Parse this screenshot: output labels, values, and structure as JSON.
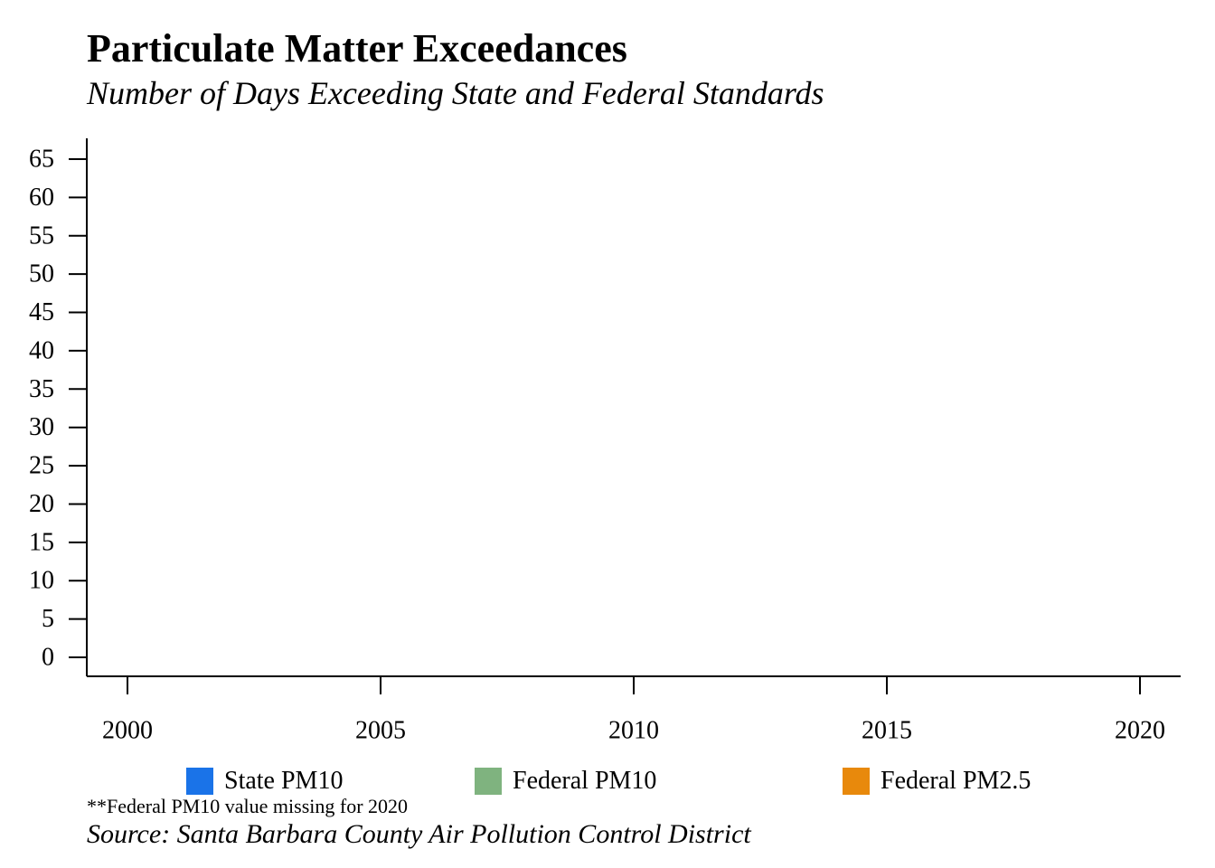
{
  "chart_data": {
    "type": "bar",
    "title": "Particulate Matter Exceedances",
    "subtitle": "Number of Days Exceeding State and Federal Standards",
    "x_ticks": [
      "2000",
      "2005",
      "2010",
      "2015",
      "2020"
    ],
    "y_ticks": [
      "0",
      "5",
      "10",
      "15",
      "20",
      "25",
      "30",
      "35",
      "40",
      "45",
      "50",
      "55",
      "60",
      "65"
    ],
    "xlim": [
      2000,
      2020
    ],
    "ylim": [
      0,
      65
    ],
    "grid": false,
    "legend_position": "bottom",
    "series": [
      {
        "name": "State PM10",
        "color": "#1a73e8",
        "values": []
      },
      {
        "name": "Federal PM10",
        "color": "#7fb37f",
        "values": []
      },
      {
        "name": "Federal PM2.5",
        "color": "#e8890c",
        "values": []
      }
    ],
    "note": "**Federal PM10 value missing for 2020",
    "source": "Source: Santa Barbara County Air Pollution Control District"
  }
}
